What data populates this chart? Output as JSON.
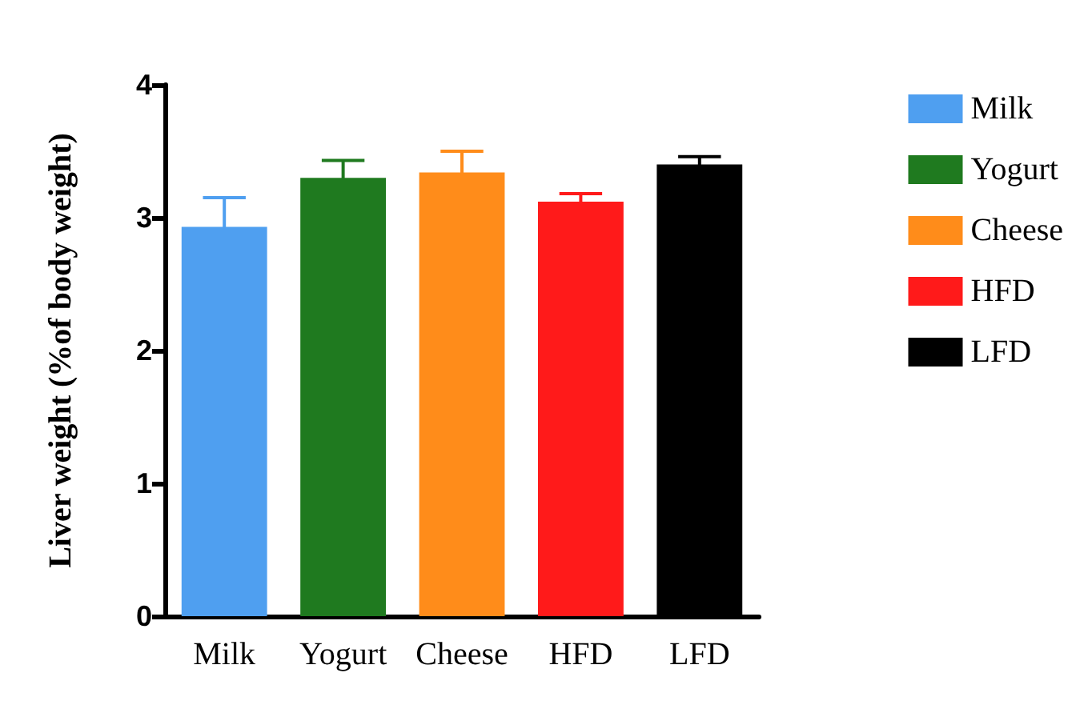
{
  "chart_data": {
    "type": "bar",
    "ylabel": "Liver weight (%of body weight)",
    "categories": [
      "Milk",
      "Yogurt",
      "Cheese",
      "HFD",
      "LFD"
    ],
    "series": [
      {
        "name": "Milk",
        "color": "#4f9ff0",
        "values": [
          2.93,
          null,
          null,
          null,
          null
        ],
        "errors": [
          0.22,
          null,
          null,
          null,
          null
        ]
      },
      {
        "name": "Yogurt",
        "color": "#1f7a1f",
        "values": [
          null,
          3.3,
          null,
          null,
          null
        ],
        "errors": [
          null,
          0.13,
          null,
          null,
          null
        ]
      },
      {
        "name": "Cheese",
        "color": "#ff8c1a",
        "values": [
          null,
          null,
          3.34,
          null,
          null
        ],
        "errors": [
          null,
          null,
          0.16,
          null,
          null
        ]
      },
      {
        "name": "HFD",
        "color": "#ff1a1a",
        "values": [
          null,
          null,
          null,
          3.12,
          null
        ],
        "errors": [
          null,
          null,
          null,
          0.06,
          null
        ]
      },
      {
        "name": "LFD",
        "color": "#000000",
        "values": [
          null,
          null,
          null,
          null,
          3.4
        ],
        "errors": [
          null,
          null,
          null,
          null,
          0.06
        ]
      }
    ],
    "ylim": [
      0,
      4
    ],
    "yticks": [
      0,
      1,
      2,
      3,
      4
    ],
    "grid": false,
    "legend": "right"
  }
}
